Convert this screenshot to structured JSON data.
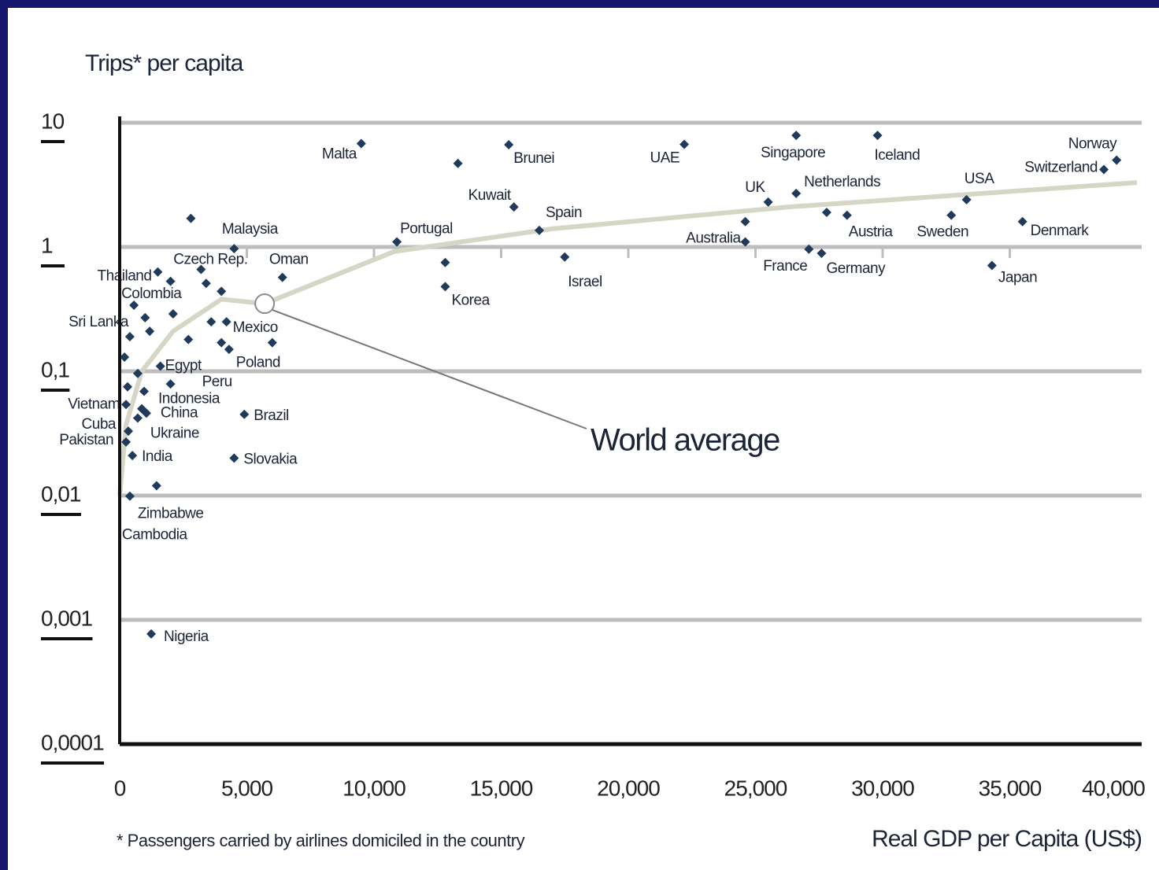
{
  "chart_data": {
    "type": "scatter",
    "y_label": "Trips* per capita",
    "x_label": "Real GDP per Capita (US$)",
    "footnote": "* Passengers carried by airlines domiciled in the country",
    "log_y": true,
    "grid": true,
    "color": "#1f3a5a",
    "xlim": [
      0,
      40000
    ],
    "xticks": [
      0,
      {
        "value": 5000,
        "label": "5,000"
      },
      {
        "value": 10000,
        "label": "10,000"
      },
      {
        "value": 15000,
        "label": "15,000"
      },
      {
        "value": 20000,
        "label": "20,000"
      },
      {
        "value": 25000,
        "label": "25,000"
      },
      {
        "value": 30000,
        "label": "30,000"
      },
      {
        "value": 35000,
        "label": "35,000"
      },
      {
        "value": 40000,
        "label": "40,000"
      }
    ],
    "ylim": [
      0.0001,
      10
    ],
    "yticks": [
      10,
      1,
      {
        "value": 0.1,
        "label": "0,1"
      },
      {
        "value": 0.01,
        "label": "0,01"
      },
      {
        "value": 0.001,
        "label": "0,001"
      },
      {
        "value": 0.0001,
        "label": "0,0001"
      }
    ],
    "x": [
      9500,
      15300,
      13300,
      22200,
      26600,
      29800,
      39200,
      38700,
      33300,
      25500,
      26600,
      15500,
      16500,
      10900,
      24600,
      24600,
      28600,
      27800,
      32700,
      35500,
      17500,
      27100,
      27600,
      34300,
      12800,
      12800,
      4500,
      6400,
      3200,
      1500,
      560,
      400,
      4200,
      6000,
      1600,
      2000,
      960,
      1050,
      250,
      710,
      340,
      250,
      500,
      4900,
      4500,
      1450,
      400,
      1240,
      2800,
      2000,
      3400,
      4000,
      2100,
      3600,
      2700,
      4000,
      4300,
      1000,
      1180,
      190,
      710,
      310,
      870
    ],
    "values": [
      6.8,
      6.65,
      4.7,
      6.7,
      7.9,
      7.9,
      5.0,
      4.2,
      2.4,
      2.3,
      2.7,
      2.1,
      1.36,
      1.1,
      1.1,
      1.6,
      1.8,
      1.9,
      1.8,
      1.6,
      0.83,
      0.96,
      0.89,
      0.71,
      0.48,
      0.75,
      0.97,
      0.57,
      0.66,
      0.63,
      0.34,
      0.19,
      0.25,
      0.17,
      0.11,
      0.079,
      0.069,
      0.046,
      0.054,
      0.042,
      0.033,
      0.027,
      0.021,
      0.045,
      0.02,
      0.012,
      0.0099,
      0.00077,
      1.7,
      0.53,
      0.51,
      0.44,
      0.29,
      0.25,
      0.18,
      0.17,
      0.15,
      0.27,
      0.21,
      0.13,
      0.096,
      0.075,
      0.05
    ],
    "point_labels": [
      "Malta",
      "Brunei",
      null,
      "UAE",
      "Singapore",
      "Iceland",
      "Norway",
      "Switzerland",
      "USA",
      "UK",
      "Netherlands",
      "Kuwait",
      "Spain",
      "Portugal",
      "Australia",
      null,
      "Austria",
      null,
      "Sweden",
      "Denmark",
      "Israel",
      "France",
      "Germany",
      "Japan",
      "Korea",
      null,
      "Malaysia",
      "Oman",
      "Czech Rep.",
      "Thailand",
      "Colombia",
      "Sri Lanka",
      "Mexico",
      "Poland",
      "Egypt",
      "Peru",
      "Indonesia",
      "China",
      "Vietnam",
      "Ukraine",
      "Cuba",
      "Pakistan",
      "India",
      "Brazil",
      "Slovakia",
      "Zimbabwe",
      "Cambodia",
      "Nigeria",
      null,
      null,
      null,
      null,
      null,
      null,
      null,
      null,
      null,
      null,
      null,
      null,
      null,
      null,
      null
    ],
    "curve": {
      "color": "#d6d6c6",
      "x": [
        0,
        250,
        870,
        2100,
        4000,
        5700,
        10800,
        17000,
        26300,
        40000
      ],
      "values": [
        0.01,
        0.037,
        0.1,
        0.21,
        0.38,
        0.35,
        0.92,
        1.4,
        2.1,
        3.3
      ]
    },
    "annotation": {
      "text": "World average",
      "x": 5700,
      "y": 0.35
    }
  }
}
